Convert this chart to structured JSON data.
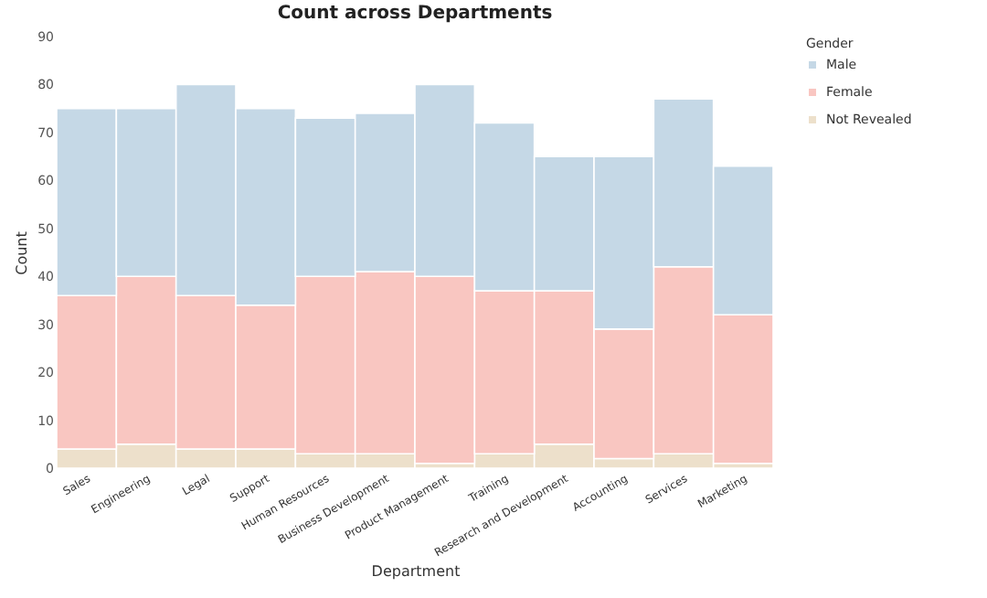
{
  "chart_data": {
    "type": "bar",
    "title": "Count across Departments",
    "xlabel": "Department",
    "ylabel": "Count",
    "legend_title": "Gender",
    "categories": [
      "Sales",
      "Engineering",
      "Legal",
      "Support",
      "Human Resources",
      "Business Development",
      "Product Management",
      "Training",
      "Research and Development",
      "Accounting",
      "Services",
      "Marketing"
    ],
    "stacked": true,
    "series": [
      {
        "name": "Not Revealed",
        "color": "#ede0cb",
        "values": [
          4,
          5,
          4,
          4,
          3,
          3,
          1,
          3,
          5,
          2,
          3,
          1
        ]
      },
      {
        "name": "Female",
        "color": "#f9c6c1",
        "values": [
          32,
          35,
          32,
          30,
          37,
          38,
          39,
          34,
          32,
          27,
          39,
          31
        ]
      },
      {
        "name": "Male",
        "color": "#c5d8e6",
        "values": [
          39,
          35,
          44,
          41,
          33,
          33,
          40,
          35,
          28,
          36,
          35,
          31
        ]
      }
    ],
    "ylim": [
      0,
      90
    ],
    "yticks": [
      0,
      10,
      20,
      30,
      40,
      50,
      60,
      70,
      80,
      90
    ],
    "grid": false,
    "legend": "right"
  }
}
